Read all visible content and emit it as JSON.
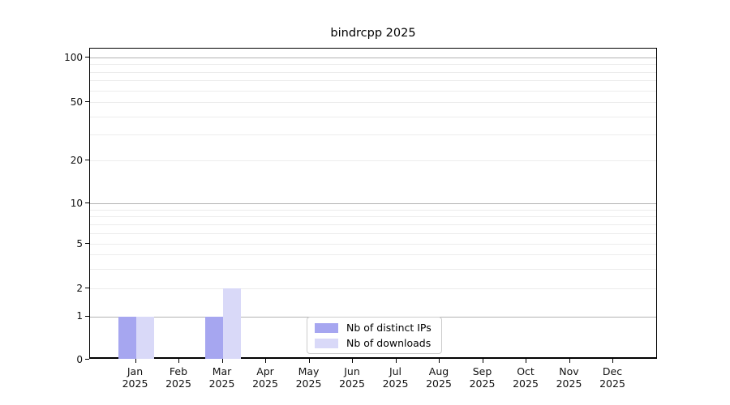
{
  "chart_data": {
    "type": "bar",
    "title": "bindrcpp 2025",
    "year_label": "2025",
    "categories": [
      "Jan",
      "Feb",
      "Mar",
      "Apr",
      "May",
      "Jun",
      "Jul",
      "Aug",
      "Sep",
      "Oct",
      "Nov",
      "Dec"
    ],
    "series": [
      {
        "name": "Nb of distinct IPs",
        "color": "#a6a6f0",
        "values": [
          1,
          0,
          1,
          0,
          0,
          0,
          0,
          0,
          0,
          0,
          0,
          0
        ]
      },
      {
        "name": "Nb of downloads",
        "color": "#d9d9f8",
        "values": [
          1,
          0,
          2,
          0,
          0,
          0,
          0,
          0,
          0,
          0,
          0,
          0
        ]
      }
    ],
    "y_ticks": [
      0,
      1,
      2,
      5,
      10,
      20,
      50,
      100
    ],
    "y_minor_gridlines": [
      2,
      3,
      4,
      5,
      6,
      7,
      8,
      9,
      20,
      30,
      40,
      50,
      60,
      70,
      80,
      90
    ],
    "y_major_gridlines": [
      1,
      10,
      100
    ],
    "scale": "log-like",
    "grid": "on",
    "legend_position": "lower center",
    "colors": {
      "major_grid": "#b3b3b3",
      "minor_grid": "#ececec",
      "spine": "#000000"
    }
  }
}
